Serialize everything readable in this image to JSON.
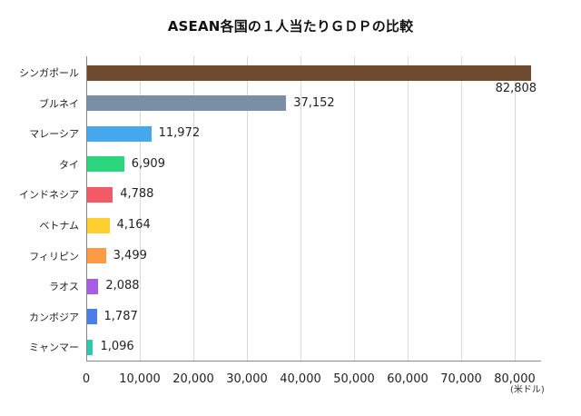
{
  "chart_data": {
    "type": "bar",
    "orientation": "horizontal",
    "title": "ASEAN各国の１人当たりＧＤＰの比較",
    "xlabel": "",
    "ylabel": "",
    "unit_label": "(米ドル)",
    "xlim": [
      0,
      85000
    ],
    "grid": true,
    "legend": null,
    "x_ticks": [
      "0",
      "10,000",
      "20,000",
      "30,000",
      "40,000",
      "50,000",
      "60,000",
      "70,000",
      "80,000"
    ],
    "categories": [
      "シンガポール",
      "ブルネイ",
      "マレーシア",
      "タイ",
      "インドネシア",
      "ベトナム",
      "フィリピン",
      "ラオス",
      "カンボジア",
      "ミャンマー"
    ],
    "values": [
      82808,
      37152,
      11972,
      6909,
      4788,
      4164,
      3499,
      2088,
      1787,
      1096
    ],
    "value_labels": [
      "82,808",
      "37,152",
      "11,972",
      "6,909",
      "4,788",
      "4,164",
      "3,499",
      "2,088",
      "1,787",
      "1,096"
    ],
    "colors": [
      "#6e4a2e",
      "#7a8ea6",
      "#45a8ec",
      "#2bd67f",
      "#f25a66",
      "#fdd02f",
      "#fd9a47",
      "#a85ce6",
      "#4a7de6",
      "#2ec9b0"
    ]
  }
}
